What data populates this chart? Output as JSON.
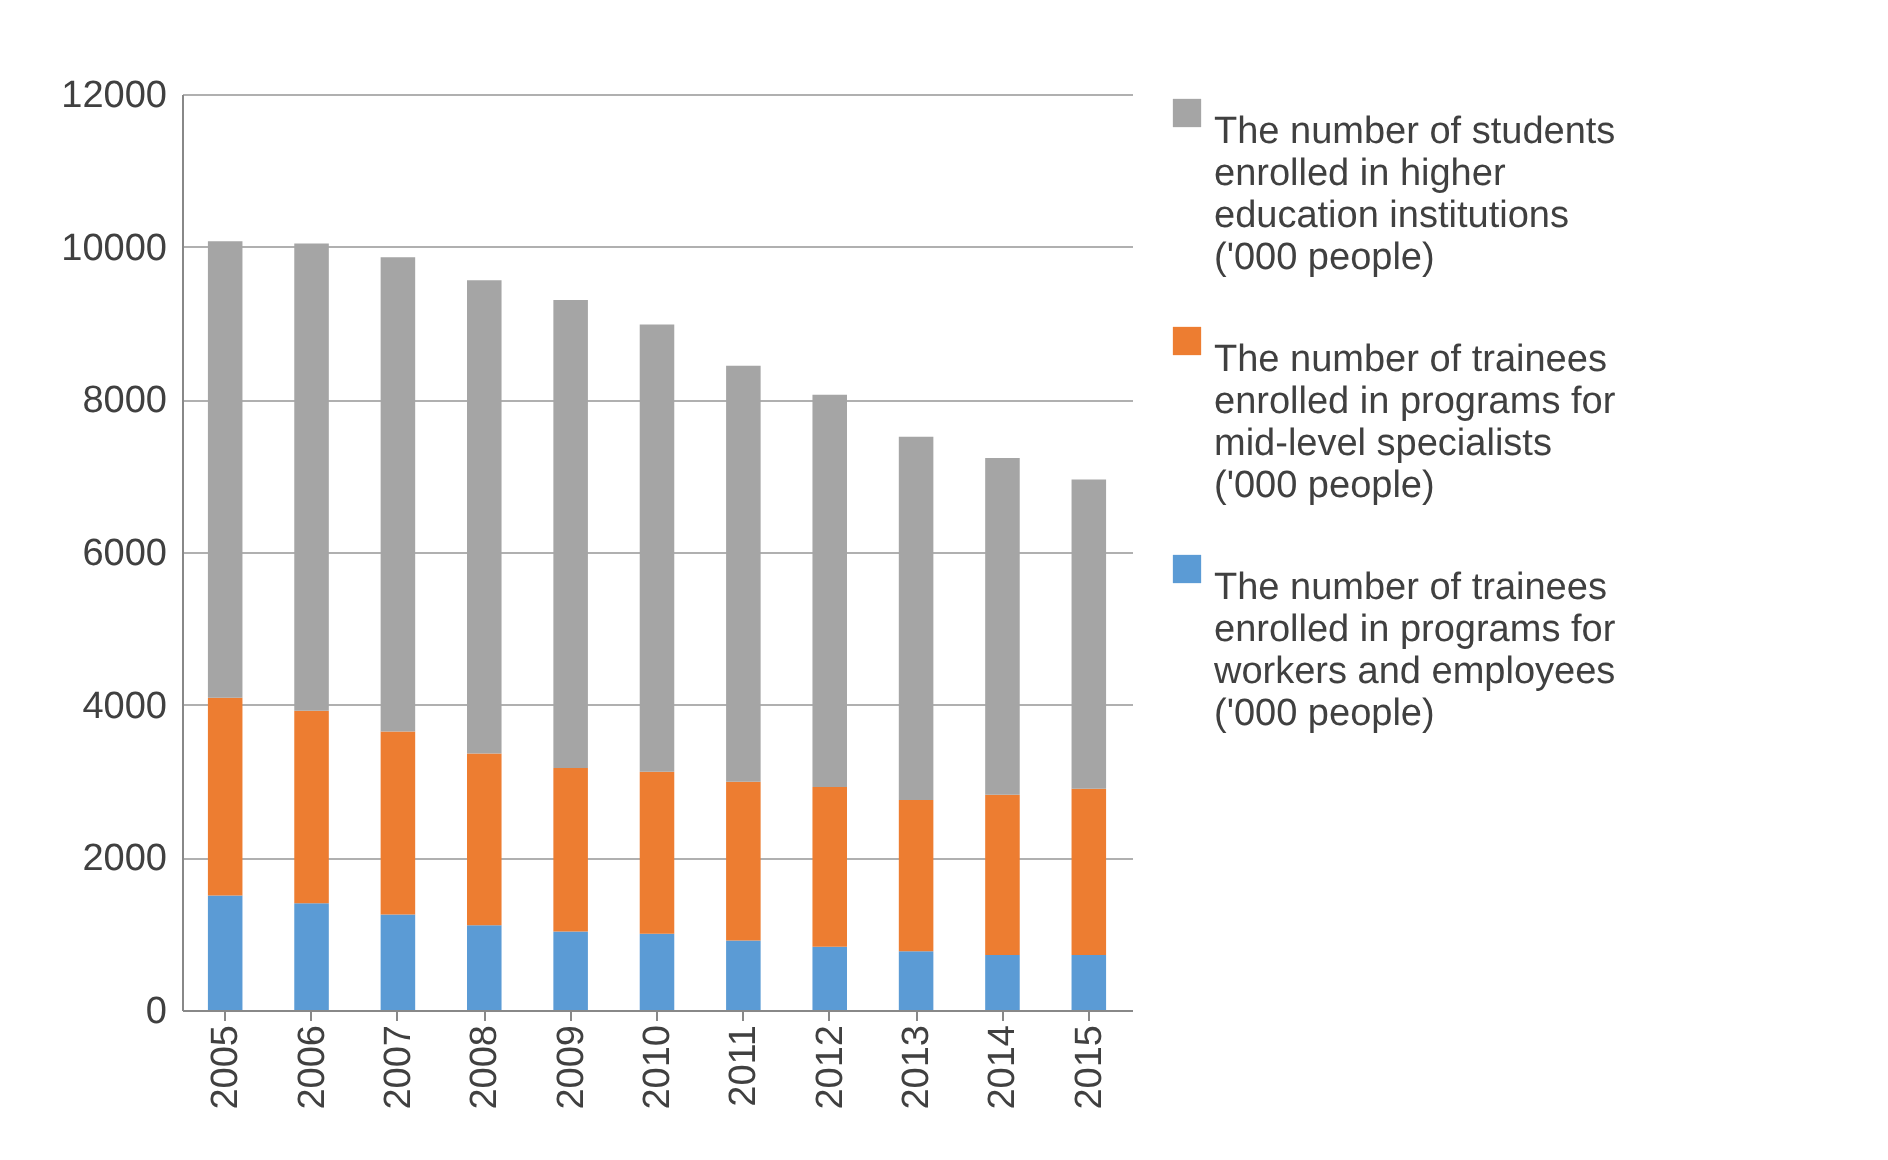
{
  "chart_data": {
    "type": "bar",
    "stacked": true,
    "categories": [
      "2005",
      "2006",
      "2007",
      "2008",
      "2009",
      "2010",
      "2011",
      "2012",
      "2013",
      "2014",
      "2015"
    ],
    "series": [
      {
        "name": "The number of trainees enrolled in programs for workers and employees ('000 people)",
        "color": "#5b9bd5",
        "values": [
          1500,
          1400,
          1250,
          1110,
          1030,
          1000,
          910,
          830,
          770,
          720,
          720
        ]
      },
      {
        "name": "The number of trainees enrolled in programs for mid-level specialists ('000 people)",
        "color": "#ed7d31",
        "values": [
          2590,
          2520,
          2400,
          2250,
          2140,
          2120,
          2080,
          2090,
          1980,
          2100,
          2180
        ]
      },
      {
        "name": "The number of students enrolled in higher education institutions ('000 people)",
        "color": "#a5a5a5",
        "values": [
          5980,
          6120,
          6210,
          6200,
          6130,
          5860,
          5450,
          5140,
          4760,
          4410,
          4050
        ]
      }
    ],
    "ylim": [
      0,
      12000
    ],
    "yticks": [
      0,
      2000,
      4000,
      6000,
      8000,
      10000,
      12000
    ],
    "grid": "y",
    "legend": "right"
  }
}
